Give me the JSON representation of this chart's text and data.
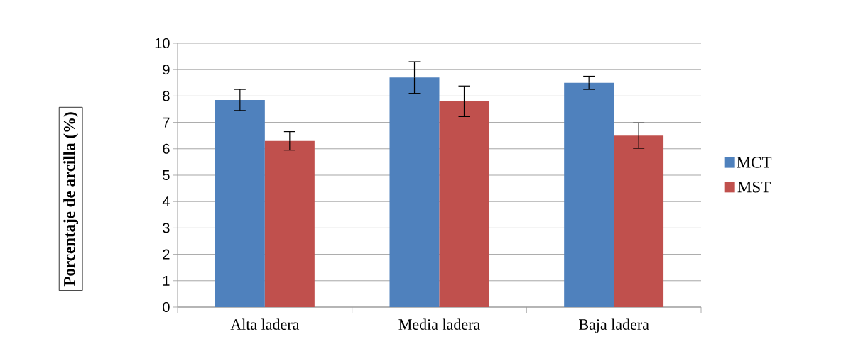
{
  "chart_data": {
    "type": "bar",
    "ylabel": "Porcentaje de arcilla (%)",
    "categories": [
      "Alta ladera",
      "Media ladera",
      "Baja ladera"
    ],
    "series": [
      {
        "name": "MCT",
        "color": "#4f81bd",
        "values": [
          7.85,
          8.7,
          8.5
        ],
        "errors": [
          0.4,
          0.6,
          0.25
        ]
      },
      {
        "name": "MST",
        "color": "#c0504d",
        "values": [
          6.3,
          7.8,
          6.5
        ],
        "errors": [
          0.35,
          0.58,
          0.48
        ]
      }
    ],
    "ylim": [
      0,
      10
    ],
    "yticks": [
      0,
      1,
      2,
      3,
      4,
      5,
      6,
      7,
      8,
      9,
      10
    ],
    "grid": "y",
    "legend": "right"
  }
}
